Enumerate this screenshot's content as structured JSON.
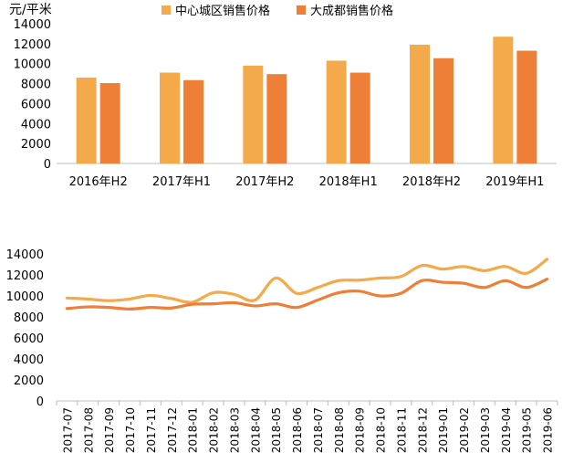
{
  "chart_data": [
    {
      "type": "bar",
      "unit_label": "元/平米",
      "categories": [
        "2016年H2",
        "2017年H1",
        "2017年H2",
        "2018年H1",
        "2018年H2",
        "2019年H1"
      ],
      "series": [
        {
          "name": "中心城区销售价格",
          "color": "#F4A94A",
          "values": [
            8600,
            9100,
            9800,
            10300,
            11900,
            12700
          ]
        },
        {
          "name": "大成都销售价格",
          "color": "#EE7F36",
          "values": [
            8050,
            8350,
            8950,
            9100,
            10550,
            11300
          ]
        }
      ],
      "ylim": [
        0,
        14000
      ],
      "yticks": [
        0,
        2000,
        4000,
        6000,
        8000,
        10000,
        12000,
        14000
      ],
      "legend_position": "top",
      "grid": false
    },
    {
      "type": "line",
      "x": [
        "2017-07",
        "2017-08",
        "2017-09",
        "2017-10",
        "2017-11",
        "2017-12",
        "2018-01",
        "2018-02",
        "2018-03",
        "2018-04",
        "2018-05",
        "2018-06",
        "2018-07",
        "2018-08",
        "2018-09",
        "2018-10",
        "2018-11",
        "2018-12",
        "2019-01",
        "2019-02",
        "2019-03",
        "2019-04",
        "2019-05",
        "2019-06"
      ],
      "series": [
        {
          "color": "#F4A94A",
          "values": [
            9800,
            9700,
            9550,
            9700,
            10050,
            9750,
            9400,
            10300,
            10150,
            9600,
            11700,
            10250,
            10800,
            11450,
            11500,
            11700,
            11850,
            12900,
            12550,
            12800,
            12400,
            12800,
            12150,
            13500
          ]
        },
        {
          "color": "#EE7F36",
          "values": [
            8800,
            8950,
            8900,
            8750,
            8900,
            8850,
            9200,
            9250,
            9350,
            9050,
            9250,
            8900,
            9600,
            10300,
            10450,
            10000,
            10250,
            11450,
            11300,
            11200,
            10800,
            11450,
            10800,
            11600
          ]
        }
      ],
      "ylim": [
        0,
        14000
      ],
      "yticks": [
        0,
        2000,
        4000,
        6000,
        8000,
        10000,
        12000,
        14000
      ],
      "grid": false
    }
  ]
}
